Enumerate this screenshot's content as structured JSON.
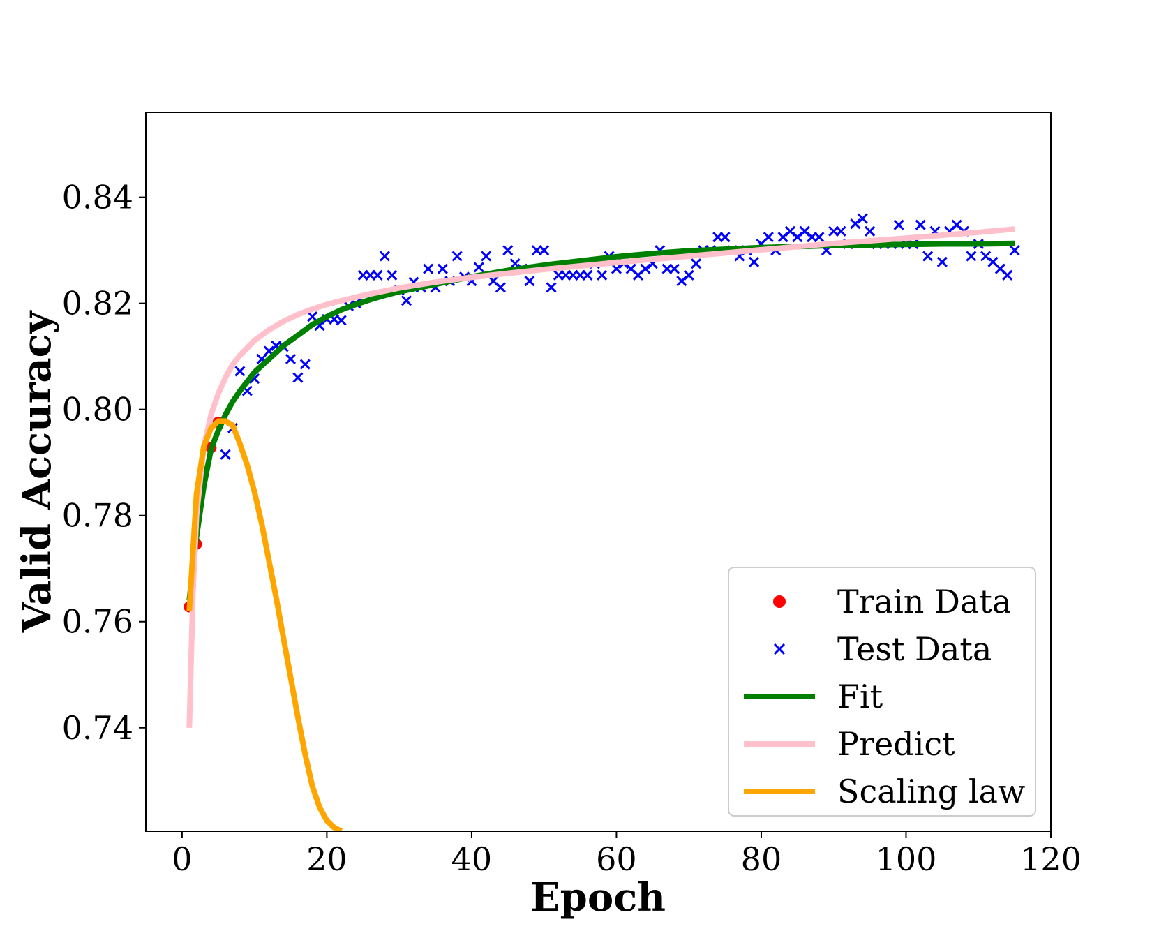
{
  "chart_data": {
    "type": "line",
    "title": "",
    "xlabel": "Epoch",
    "ylabel": "Valid Accuracy",
    "xlim": [
      -5,
      120
    ],
    "ylim": [
      0.7205,
      0.856
    ],
    "grid": false,
    "legend_position": "lower right",
    "xticks": [
      {
        "value": 0,
        "label": "0"
      },
      {
        "value": 20,
        "label": "20"
      },
      {
        "value": 40,
        "label": "40"
      },
      {
        "value": 60,
        "label": "60"
      },
      {
        "value": 80,
        "label": "80"
      },
      {
        "value": 100,
        "label": "100"
      },
      {
        "value": 120,
        "label": "120"
      }
    ],
    "yticks": [
      {
        "value": 0.74,
        "label": "0.74"
      },
      {
        "value": 0.76,
        "label": "0.76"
      },
      {
        "value": 0.78,
        "label": "0.78"
      },
      {
        "value": 0.8,
        "label": "0.80"
      },
      {
        "value": 0.82,
        "label": "0.82"
      },
      {
        "value": 0.84,
        "label": "0.84"
      }
    ],
    "colors": {
      "train": "#ff0000",
      "test": "#0000ff",
      "fit": "#008000",
      "predict": "#ffc0cb",
      "scaling": "#ffa500"
    },
    "series": [
      {
        "name": "Train Data",
        "kind": "scatter",
        "marker": "circle",
        "color": "#ff0000",
        "x": [
          1,
          2,
          3,
          4,
          5
        ],
        "y": [
          0.7628,
          0.7746,
          0.7882,
          0.7928,
          0.7976
        ]
      },
      {
        "name": "Test Data",
        "kind": "scatter",
        "marker": "x",
        "color": "#0000ff",
        "x": [
          6,
          7,
          8,
          9,
          10,
          11,
          12,
          13,
          14,
          15,
          16,
          17,
          18,
          19,
          20,
          21,
          22,
          23,
          24,
          25,
          26,
          27,
          28,
          29,
          30,
          31,
          32,
          33,
          34,
          35,
          36,
          37,
          38,
          39,
          40,
          41,
          42,
          43,
          44,
          45,
          46,
          47,
          48,
          49,
          50,
          51,
          52,
          53,
          54,
          55,
          56,
          57,
          58,
          59,
          60,
          61,
          62,
          63,
          64,
          65,
          66,
          67,
          68,
          69,
          70,
          71,
          72,
          73,
          74,
          75,
          76,
          77,
          78,
          79,
          80,
          81,
          82,
          83,
          84,
          85,
          86,
          87,
          88,
          89,
          90,
          91,
          92,
          93,
          94,
          95,
          96,
          97,
          98,
          99,
          100,
          101,
          102,
          103,
          104,
          105,
          106,
          107,
          108,
          109,
          110,
          111,
          112,
          113,
          114,
          115
        ],
        "y": [
          0.7915,
          0.7965,
          0.8072,
          0.8035,
          0.8058,
          0.8095,
          0.811,
          0.812,
          0.8118,
          0.8095,
          0.806,
          0.8085,
          0.8175,
          0.8158,
          0.817,
          0.817,
          0.8168,
          0.8195,
          0.82,
          0.8253,
          0.8253,
          0.8253,
          0.8289,
          0.8253,
          0.8225,
          0.8205,
          0.824,
          0.823,
          0.8265,
          0.823,
          0.8265,
          0.8242,
          0.8289,
          0.825,
          0.8242,
          0.8268,
          0.8289,
          0.8242,
          0.823,
          0.83,
          0.8275,
          0.8265,
          0.8242,
          0.83,
          0.83,
          0.823,
          0.8253,
          0.8253,
          0.8253,
          0.8253,
          0.8253,
          0.8275,
          0.8253,
          0.8289,
          0.8265,
          0.8275,
          0.8265,
          0.8253,
          0.8265,
          0.8275,
          0.83,
          0.8265,
          0.8265,
          0.8242,
          0.8253,
          0.8275,
          0.83,
          0.83,
          0.8325,
          0.8325,
          0.83,
          0.8289,
          0.83,
          0.8278,
          0.8312,
          0.8325,
          0.83,
          0.8325,
          0.8336,
          0.8325,
          0.8336,
          0.8325,
          0.8325,
          0.83,
          0.8336,
          0.8336,
          0.8312,
          0.835,
          0.836,
          0.8336,
          0.8312,
          0.8312,
          0.8312,
          0.8348,
          0.8312,
          0.8312,
          0.8348,
          0.8289,
          0.8336,
          0.8278,
          0.8336,
          0.8348,
          0.8336,
          0.8289,
          0.8312,
          0.8289,
          0.8278,
          0.8265,
          0.8253,
          0.83
        ]
      },
      {
        "name": "Fit",
        "kind": "line",
        "color": "#008000",
        "x": [
          1,
          2,
          3,
          4,
          5,
          6,
          7,
          8,
          10,
          12,
          14,
          16,
          18,
          20,
          22,
          24,
          26,
          28,
          30,
          35,
          40,
          45,
          50,
          55,
          60,
          65,
          70,
          75,
          80,
          85,
          90,
          95,
          100,
          105,
          110,
          115
        ],
        "y": [
          0.764,
          0.776,
          0.7855,
          0.7925,
          0.796,
          0.799,
          0.8015,
          0.8035,
          0.807,
          0.8095,
          0.812,
          0.814,
          0.816,
          0.8175,
          0.8188,
          0.8198,
          0.8207,
          0.8215,
          0.8222,
          0.8236,
          0.825,
          0.8262,
          0.8272,
          0.828,
          0.8288,
          0.8294,
          0.8299,
          0.8302,
          0.8305,
          0.8307,
          0.8309,
          0.831,
          0.8311,
          0.8312,
          0.8312,
          0.8313
        ]
      },
      {
        "name": "Predict",
        "kind": "line",
        "color": "#ffc0cb",
        "x": [
          1,
          1.5,
          2,
          3,
          4,
          5,
          6,
          7,
          8,
          10,
          12,
          14,
          16,
          18,
          20,
          22,
          25,
          30,
          35,
          40,
          50,
          60,
          70,
          80,
          90,
          100,
          110,
          115
        ],
        "y": [
          0.74,
          0.765,
          0.78,
          0.793,
          0.799,
          0.803,
          0.806,
          0.8085,
          0.8102,
          0.813,
          0.815,
          0.8166,
          0.8179,
          0.8189,
          0.8198,
          0.8205,
          0.8215,
          0.8229,
          0.824,
          0.8249,
          0.8264,
          0.8277,
          0.8289,
          0.8301,
          0.8313,
          0.8323,
          0.8334,
          0.834
        ]
      },
      {
        "name": "Scaling law",
        "kind": "line",
        "color": "#ffa500",
        "x": [
          1,
          2,
          3,
          4,
          5,
          6,
          7,
          8,
          9,
          10,
          11,
          12,
          13,
          14,
          15,
          16,
          17,
          18,
          19,
          20,
          21,
          22
        ],
        "y": [
          0.762,
          0.784,
          0.793,
          0.7965,
          0.7978,
          0.7978,
          0.797,
          0.7935,
          0.7895,
          0.7845,
          0.7785,
          0.7715,
          0.7645,
          0.757,
          0.7495,
          0.742,
          0.735,
          0.729,
          0.725,
          0.7225,
          0.7212,
          0.7205
        ]
      }
    ]
  }
}
